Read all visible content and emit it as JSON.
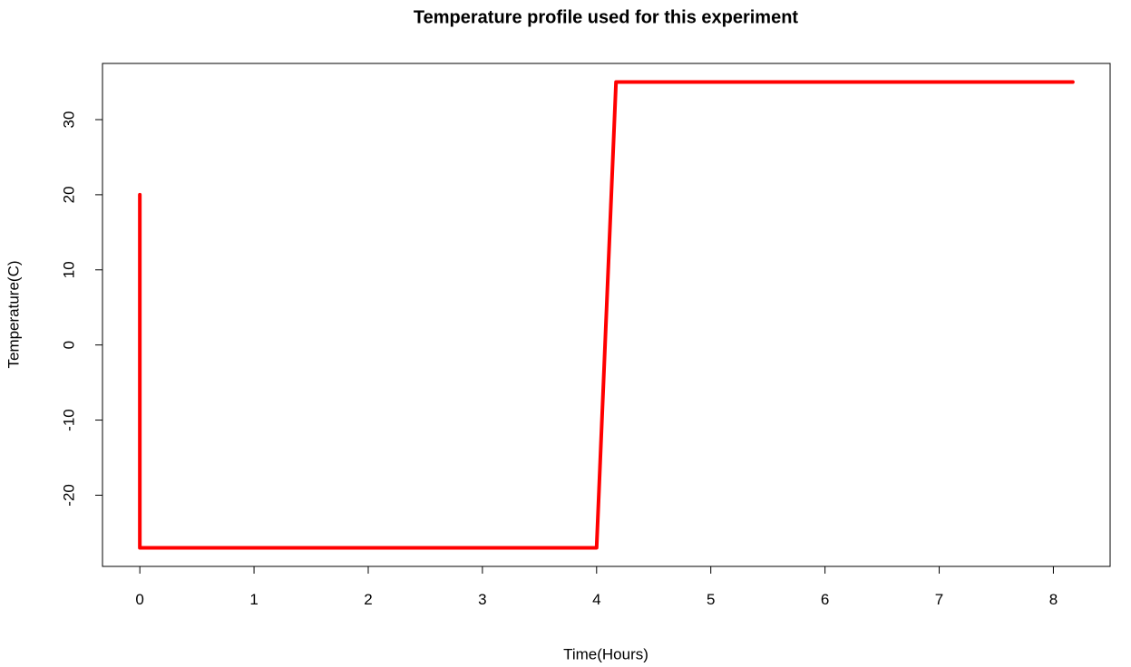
{
  "chart_data": {
    "type": "line",
    "title": "Temperature profile used for this experiment",
    "x_label": "Time(Hours)",
    "y_label": "Temperature(C)",
    "x": [
      0,
      0,
      4,
      4.17,
      8.17
    ],
    "values": [
      20,
      -27,
      -27,
      35,
      35
    ],
    "color": "#ff0000",
    "xlim": [
      -0.327,
      8.497
    ],
    "ylim": [
      -29.48,
      37.48
    ],
    "xticks": [
      0,
      1,
      2,
      3,
      4,
      5,
      6,
      7,
      8
    ],
    "yticks": [
      -20,
      -10,
      0,
      10,
      20,
      30
    ],
    "grid": false
  }
}
